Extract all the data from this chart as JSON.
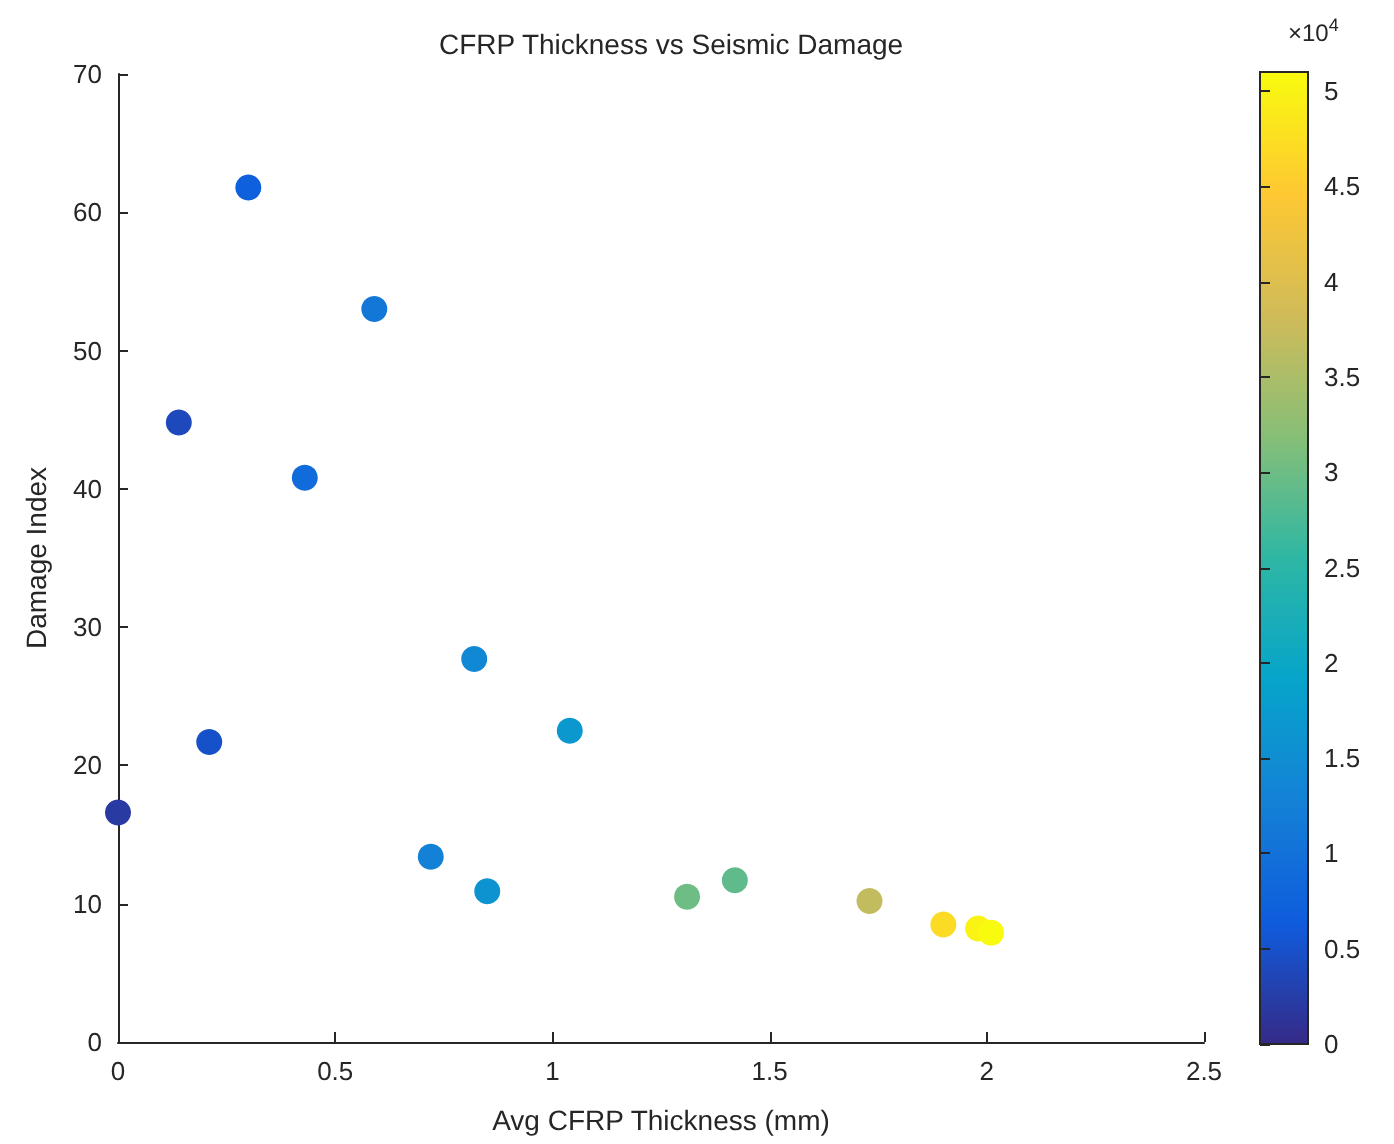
{
  "chart_data": {
    "type": "scatter",
    "title": "CFRP Thickness vs Seismic Damage",
    "xlabel": "Avg CFRP Thickness (mm)",
    "ylabel": "Damage Index",
    "clabel": "×10$^{4}$",
    "x": [
      0,
      0.14,
      0.21,
      0.3,
      0.43,
      0.59,
      0.82,
      0.72,
      0.85,
      1.04,
      1.31,
      1.42,
      1.73,
      1.9,
      1.98,
      2.01
    ],
    "values": [
      16.6,
      44.8,
      21.7,
      61.8,
      40.8,
      53,
      27.7,
      13.4,
      10.9,
      22.5,
      10.5,
      11.7,
      10.2,
      8.5,
      8.2,
      7.9
    ],
    "cvalues": [
      0.2,
      0.4,
      0.5,
      0.7,
      0.9,
      1.1,
      1.4,
      1.3,
      1.6,
      1.7,
      3,
      2.9,
      3.7,
      4.7,
      5,
      5.1
    ],
    "marker": "circle",
    "xlim": [
      0,
      2.5
    ],
    "ylim": [
      0,
      70
    ],
    "xticks": [
      0,
      0.5,
      1,
      1.5,
      2,
      2.5
    ],
    "yticks": [
      0,
      10,
      20,
      30,
      40,
      50,
      60,
      70
    ],
    "clim": [
      0,
      5.1
    ],
    "cticks": [
      0,
      0.5,
      1,
      1.5,
      2,
      2.5,
      3,
      3.5,
      4,
      4.5,
      5
    ]
  }
}
